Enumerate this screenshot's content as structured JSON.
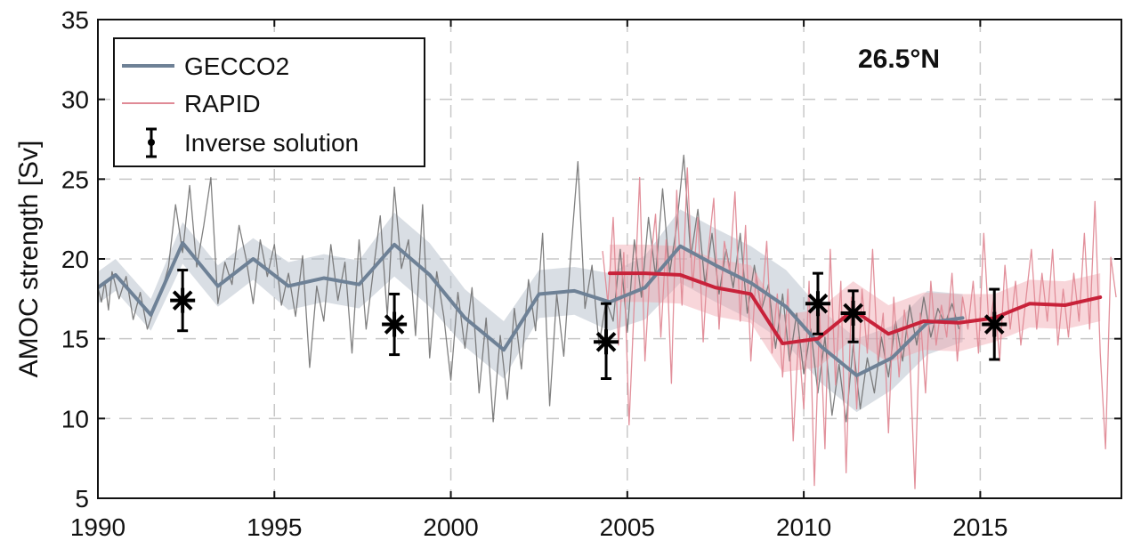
{
  "chart_data": {
    "type": "line",
    "annotation": "26.5°N",
    "ylabel": "AMOC strength [Sv]",
    "xlabel": "",
    "xlim": [
      1990,
      2019
    ],
    "ylim": [
      5,
      35
    ],
    "x_ticks": [
      1990,
      1995,
      2000,
      2005,
      2010,
      2015
    ],
    "y_ticks": [
      5,
      10,
      15,
      20,
      25,
      30,
      35
    ],
    "grid": true,
    "legend_position": "top-left",
    "legend": [
      "GECCO2",
      "RAPID",
      "Inverse solution"
    ],
    "series": [
      {
        "name": "GECCO2",
        "color": "#6e8196",
        "x": [
          1990,
          1990.5,
          1991.5,
          1992.4,
          1993.4,
          1994.4,
          1995.4,
          1996.4,
          1997.4,
          1998.4,
          1999.4,
          2000.4,
          2001.5,
          2002.5,
          2003.5,
          2004.5,
          2005.5,
          2006.5,
          2007.5,
          2008.5,
          2009.5,
          2010.5,
          2011.5,
          2012.5,
          2013.5,
          2014.5
        ],
        "values": [
          18.2,
          19.0,
          16.5,
          21.0,
          18.3,
          20.0,
          18.3,
          18.8,
          18.4,
          20.9,
          19.0,
          16.3,
          14.3,
          17.8,
          18.0,
          17.3,
          18.2,
          20.8,
          19.6,
          18.5,
          17.0,
          14.5,
          12.7,
          13.8,
          16.0,
          16.3
        ],
        "band": [
          1.0,
          1.0,
          1.0,
          1.3,
          1.3,
          1.3,
          1.5,
          1.5,
          1.5,
          2.0,
          2.0,
          1.8,
          1.8,
          1.5,
          1.5,
          1.8,
          2.0,
          2.3,
          2.3,
          2.3,
          2.3,
          2.3,
          2.3,
          2.0,
          2.0,
          1.5
        ]
      },
      {
        "name": "RAPID",
        "color": "#c8223a",
        "x": [
          2004.5,
          2005.5,
          2006.5,
          2007.5,
          2008.5,
          2009.4,
          2010.4,
          2011.4,
          2012.4,
          2013.4,
          2014.4,
          2015.4,
          2016.4,
          2017.4,
          2018.4
        ],
        "values": [
          19.1,
          19.1,
          19.0,
          18.2,
          17.8,
          14.7,
          15.0,
          16.8,
          15.3,
          16.1,
          16.0,
          16.3,
          17.2,
          17.1,
          17.6
        ],
        "band": [
          1.8,
          1.8,
          1.8,
          1.8,
          1.8,
          1.8,
          1.8,
          1.8,
          1.8,
          1.8,
          1.8,
          1.5,
          1.5,
          1.5,
          1.5
        ]
      }
    ],
    "monthly_series": [
      {
        "name": "GECCO2 monthly",
        "color": "#6a6a6a",
        "points": [
          [
            1990.0,
            18.2
          ],
          [
            1990.1,
            17.3
          ],
          [
            1990.2,
            18.6
          ],
          [
            1990.3,
            16.8
          ],
          [
            1990.4,
            19.2
          ],
          [
            1990.6,
            17.5
          ],
          [
            1990.8,
            18.9
          ],
          [
            1991.0,
            16.2
          ],
          [
            1991.2,
            17.9
          ],
          [
            1991.4,
            15.6
          ],
          [
            1991.6,
            16.9
          ],
          [
            1991.8,
            17.9
          ],
          [
            1992.0,
            19.5
          ],
          [
            1992.2,
            23.4
          ],
          [
            1992.4,
            20.4
          ],
          [
            1992.6,
            24.6
          ],
          [
            1992.8,
            19.5
          ],
          [
            1993.0,
            22.1
          ],
          [
            1993.2,
            25.1
          ],
          [
            1993.4,
            17.2
          ],
          [
            1993.6,
            19.8
          ],
          [
            1993.8,
            18.4
          ],
          [
            1994.0,
            22.1
          ],
          [
            1994.2,
            20.0
          ],
          [
            1994.4,
            17.2
          ],
          [
            1994.6,
            21.2
          ],
          [
            1994.8,
            18.9
          ],
          [
            1995.0,
            20.9
          ],
          [
            1995.2,
            17.1
          ],
          [
            1995.4,
            19.1
          ],
          [
            1995.6,
            16.4
          ],
          [
            1995.8,
            20.2
          ],
          [
            1996.0,
            13.2
          ],
          [
            1996.2,
            18.3
          ],
          [
            1996.4,
            16.1
          ],
          [
            1996.6,
            20.9
          ],
          [
            1996.8,
            17.4
          ],
          [
            1997.0,
            19.8
          ],
          [
            1997.2,
            14.1
          ],
          [
            1997.4,
            21.2
          ],
          [
            1997.6,
            15.6
          ],
          [
            1997.8,
            19.2
          ],
          [
            1998.0,
            22.7
          ],
          [
            1998.2,
            16.4
          ],
          [
            1998.4,
            24.5
          ],
          [
            1998.6,
            19.4
          ],
          [
            1998.8,
            21.2
          ],
          [
            1999.0,
            15.2
          ],
          [
            1999.2,
            23.4
          ],
          [
            1999.4,
            13.8
          ],
          [
            1999.6,
            19.2
          ],
          [
            1999.8,
            16.4
          ],
          [
            2000.0,
            12.4
          ],
          [
            2000.2,
            17.9
          ],
          [
            2000.4,
            14.4
          ],
          [
            2000.6,
            18.2
          ],
          [
            2000.8,
            11.6
          ],
          [
            2001.0,
            16.3
          ],
          [
            2001.2,
            9.8
          ],
          [
            2001.4,
            15.2
          ],
          [
            2001.6,
            11.2
          ],
          [
            2001.8,
            16.9
          ],
          [
            2002.0,
            13.1
          ],
          [
            2002.2,
            18.7
          ],
          [
            2002.4,
            15.5
          ],
          [
            2002.6,
            21.6
          ],
          [
            2002.8,
            10.8
          ],
          [
            2003.0,
            17.8
          ],
          [
            2003.2,
            13.9
          ],
          [
            2003.4,
            20.4
          ],
          [
            2003.6,
            26.1
          ],
          [
            2003.8,
            16.9
          ],
          [
            2004.0,
            19.6
          ],
          [
            2004.2,
            14.6
          ],
          [
            2004.4,
            17.4
          ],
          [
            2004.6,
            16.1
          ],
          [
            2004.8,
            20.6
          ],
          [
            2005.0,
            15.4
          ],
          [
            2005.2,
            21.2
          ],
          [
            2005.4,
            17.6
          ],
          [
            2005.6,
            22.6
          ],
          [
            2005.8,
            18.9
          ],
          [
            2006.0,
            24.4
          ],
          [
            2006.2,
            19.1
          ],
          [
            2006.4,
            22.1
          ],
          [
            2006.6,
            26.5
          ],
          [
            2006.8,
            20.1
          ],
          [
            2007.0,
            23.1
          ],
          [
            2007.2,
            18.4
          ],
          [
            2007.4,
            21.6
          ],
          [
            2007.6,
            17.8
          ],
          [
            2007.8,
            20.6
          ],
          [
            2008.0,
            18.2
          ],
          [
            2008.2,
            21.6
          ],
          [
            2008.4,
            16.6
          ],
          [
            2008.6,
            19.6
          ],
          [
            2008.8,
            16.8
          ],
          [
            2009.0,
            18.4
          ],
          [
            2009.2,
            14.4
          ],
          [
            2009.4,
            17.8
          ],
          [
            2009.6,
            13.6
          ],
          [
            2009.8,
            16.6
          ],
          [
            2010.0,
            12.8
          ],
          [
            2010.2,
            15.6
          ],
          [
            2010.4,
            11.6
          ],
          [
            2010.6,
            15.1
          ],
          [
            2010.8,
            10.2
          ],
          [
            2011.0,
            13.4
          ],
          [
            2011.2,
            9.8
          ],
          [
            2011.4,
            14.6
          ],
          [
            2011.6,
            10.6
          ],
          [
            2011.8,
            13.8
          ],
          [
            2012.0,
            11.6
          ],
          [
            2012.2,
            15.1
          ],
          [
            2012.4,
            12.6
          ],
          [
            2012.6,
            16.1
          ],
          [
            2012.8,
            13.6
          ],
          [
            2013.0,
            17.1
          ],
          [
            2013.2,
            14.6
          ],
          [
            2013.4,
            17.6
          ],
          [
            2013.6,
            15.1
          ],
          [
            2013.8,
            16.9
          ],
          [
            2014.0,
            15.9
          ],
          [
            2014.2,
            17.2
          ],
          [
            2014.4,
            15.6
          ]
        ]
      },
      {
        "name": "RAPID monthly",
        "color": "#e08a96",
        "points": [
          [
            2004.3,
            20.5
          ],
          [
            2004.45,
            17.2
          ],
          [
            2004.6,
            22.6
          ],
          [
            2004.75,
            14.6
          ],
          [
            2004.9,
            20.4
          ],
          [
            2005.05,
            9.6
          ],
          [
            2005.2,
            17.4
          ],
          [
            2005.35,
            25.1
          ],
          [
            2005.5,
            13.6
          ],
          [
            2005.65,
            19.6
          ],
          [
            2005.8,
            22.8
          ],
          [
            2005.95,
            15.1
          ],
          [
            2006.1,
            21.2
          ],
          [
            2006.25,
            12.2
          ],
          [
            2006.4,
            24.3
          ],
          [
            2006.55,
            17.1
          ],
          [
            2006.7,
            25.7
          ],
          [
            2006.85,
            18.2
          ],
          [
            2007.0,
            22.6
          ],
          [
            2007.15,
            14.8
          ],
          [
            2007.3,
            20.6
          ],
          [
            2007.45,
            23.8
          ],
          [
            2007.6,
            15.6
          ],
          [
            2007.75,
            21.1
          ],
          [
            2007.9,
            19.2
          ],
          [
            2008.05,
            24.2
          ],
          [
            2008.2,
            16.1
          ],
          [
            2008.35,
            22.1
          ],
          [
            2008.5,
            13.6
          ],
          [
            2008.65,
            19.1
          ],
          [
            2008.8,
            16.8
          ],
          [
            2008.95,
            21.1
          ],
          [
            2009.1,
            14.1
          ],
          [
            2009.25,
            17.8
          ],
          [
            2009.4,
            12.6
          ],
          [
            2009.55,
            18.1
          ],
          [
            2009.7,
            8.6
          ],
          [
            2009.85,
            15.1
          ],
          [
            2010.0,
            10.6
          ],
          [
            2010.15,
            18.6
          ],
          [
            2010.3,
            5.8
          ],
          [
            2010.45,
            16.6
          ],
          [
            2010.6,
            8.1
          ],
          [
            2010.75,
            20.6
          ],
          [
            2010.9,
            12.1
          ],
          [
            2011.05,
            18.6
          ],
          [
            2011.2,
            6.6
          ],
          [
            2011.35,
            17.6
          ],
          [
            2011.5,
            10.6
          ],
          [
            2011.65,
            18.1
          ],
          [
            2011.8,
            14.1
          ],
          [
            2011.95,
            20.6
          ],
          [
            2012.1,
            13.6
          ],
          [
            2012.25,
            16.6
          ],
          [
            2012.4,
            9.1
          ],
          [
            2012.55,
            17.6
          ],
          [
            2012.7,
            12.6
          ],
          [
            2012.85,
            16.8
          ],
          [
            2013.0,
            14.1
          ],
          [
            2013.15,
            5.6
          ],
          [
            2013.3,
            16.6
          ],
          [
            2013.45,
            11.6
          ],
          [
            2013.6,
            18.6
          ],
          [
            2013.75,
            14.6
          ],
          [
            2013.9,
            17.1
          ],
          [
            2014.05,
            15.1
          ],
          [
            2014.2,
            19.1
          ],
          [
            2014.35,
            13.6
          ],
          [
            2014.5,
            17.6
          ],
          [
            2014.65,
            15.6
          ],
          [
            2014.8,
            18.6
          ],
          [
            2014.95,
            14.1
          ],
          [
            2015.1,
            21.6
          ],
          [
            2015.25,
            15.6
          ],
          [
            2015.4,
            17.8
          ],
          [
            2015.55,
            13.6
          ],
          [
            2015.7,
            19.6
          ],
          [
            2015.85,
            15.6
          ],
          [
            2016.0,
            18.6
          ],
          [
            2016.15,
            14.6
          ],
          [
            2016.3,
            17.6
          ],
          [
            2016.45,
            20.6
          ],
          [
            2016.6,
            15.6
          ],
          [
            2016.75,
            19.1
          ],
          [
            2016.9,
            16.1
          ],
          [
            2017.05,
            20.6
          ],
          [
            2017.2,
            14.6
          ],
          [
            2017.35,
            18.1
          ],
          [
            2017.5,
            15.1
          ],
          [
            2017.65,
            19.1
          ],
          [
            2017.8,
            16.1
          ],
          [
            2017.95,
            21.6
          ],
          [
            2018.1,
            15.6
          ],
          [
            2018.25,
            23.6
          ],
          [
            2018.4,
            14.1
          ],
          [
            2018.55,
            8.1
          ],
          [
            2018.7,
            20.1
          ],
          [
            2018.85,
            17.6
          ]
        ]
      }
    ],
    "inverse_solution": {
      "name": "Inverse solution",
      "color": "#000000",
      "x": [
        1992.4,
        1998.4,
        2004.4,
        2010.4,
        2011.4,
        2015.4
      ],
      "values": [
        17.4,
        15.9,
        14.8,
        17.2,
        16.6,
        15.9
      ],
      "err_low": [
        15.5,
        14.0,
        12.5,
        15.3,
        14.8,
        13.7
      ],
      "err_high": [
        19.3,
        17.8,
        17.2,
        19.1,
        18.0,
        18.1
      ]
    }
  }
}
